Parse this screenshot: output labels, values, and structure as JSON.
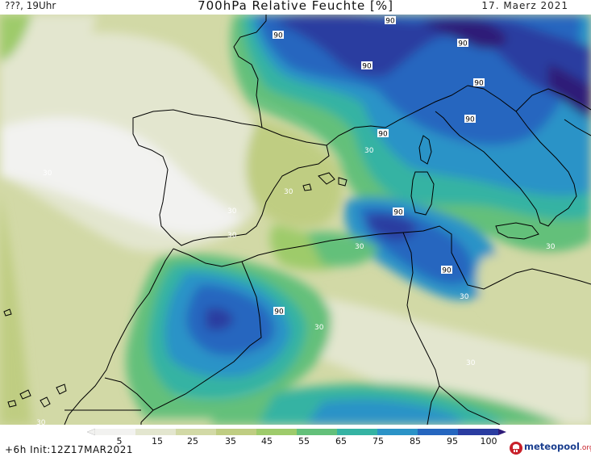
{
  "header": {
    "left": "???, 19Uhr",
    "title": "700hPa Relative Feuchte [%]",
    "date": "17. Maerz 2021"
  },
  "footer": {
    "init": "+6h  Init:12Z17MAR2021",
    "logo_name": "meteopool",
    "logo_tld": ".org"
  },
  "legend": {
    "ticks": [
      "5",
      "15",
      "25",
      "35",
      "45",
      "55",
      "65",
      "75",
      "85",
      "95",
      "100"
    ],
    "colors": [
      "#f2f2f0",
      "#e3e6cf",
      "#d2d9a6",
      "#bfcd82",
      "#9ecb6b",
      "#63c07a",
      "#35b3a3",
      "#2b93c7",
      "#2566bf",
      "#2a3ca0",
      "#2e1a78"
    ]
  },
  "map": {
    "contour_labels_90": [
      "90",
      "90",
      "90",
      "90",
      "90",
      "90",
      "90",
      "90",
      "90",
      "90"
    ],
    "contour_labels_30": [
      "30",
      "30",
      "30",
      "30",
      "30",
      "30",
      "30",
      "30",
      "30",
      "30",
      "30",
      "30"
    ]
  }
}
